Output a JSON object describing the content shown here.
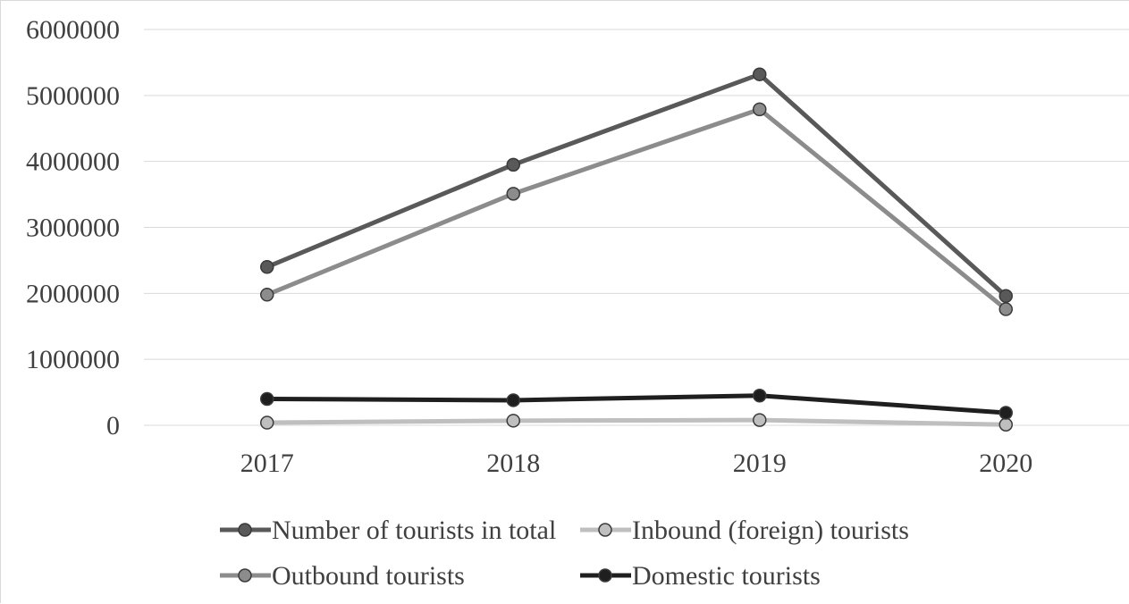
{
  "chart_data": {
    "type": "line",
    "categories": [
      "2017",
      "2018",
      "2019",
      "2020"
    ],
    "ylim": [
      0,
      6000000
    ],
    "yticks": [
      "0",
      "1000000",
      "2000000",
      "3000000",
      "4000000",
      "5000000",
      "6000000"
    ],
    "grid": true,
    "legend_position": "bottom",
    "series": [
      {
        "name": "Number of tourists in total",
        "values": [
          2400000,
          3950000,
          5320000,
          1960000
        ],
        "color": "#595959"
      },
      {
        "name": "Inbound (foreign) tourists",
        "values": [
          40000,
          70000,
          80000,
          10000
        ],
        "color": "#bfbfbf"
      },
      {
        "name": "Outbound tourists",
        "values": [
          1980000,
          3510000,
          4790000,
          1760000
        ],
        "color": "#8c8c8c"
      },
      {
        "name": "Domestic tourists",
        "values": [
          400000,
          380000,
          450000,
          190000
        ],
        "color": "#1f1f1f"
      }
    ]
  }
}
